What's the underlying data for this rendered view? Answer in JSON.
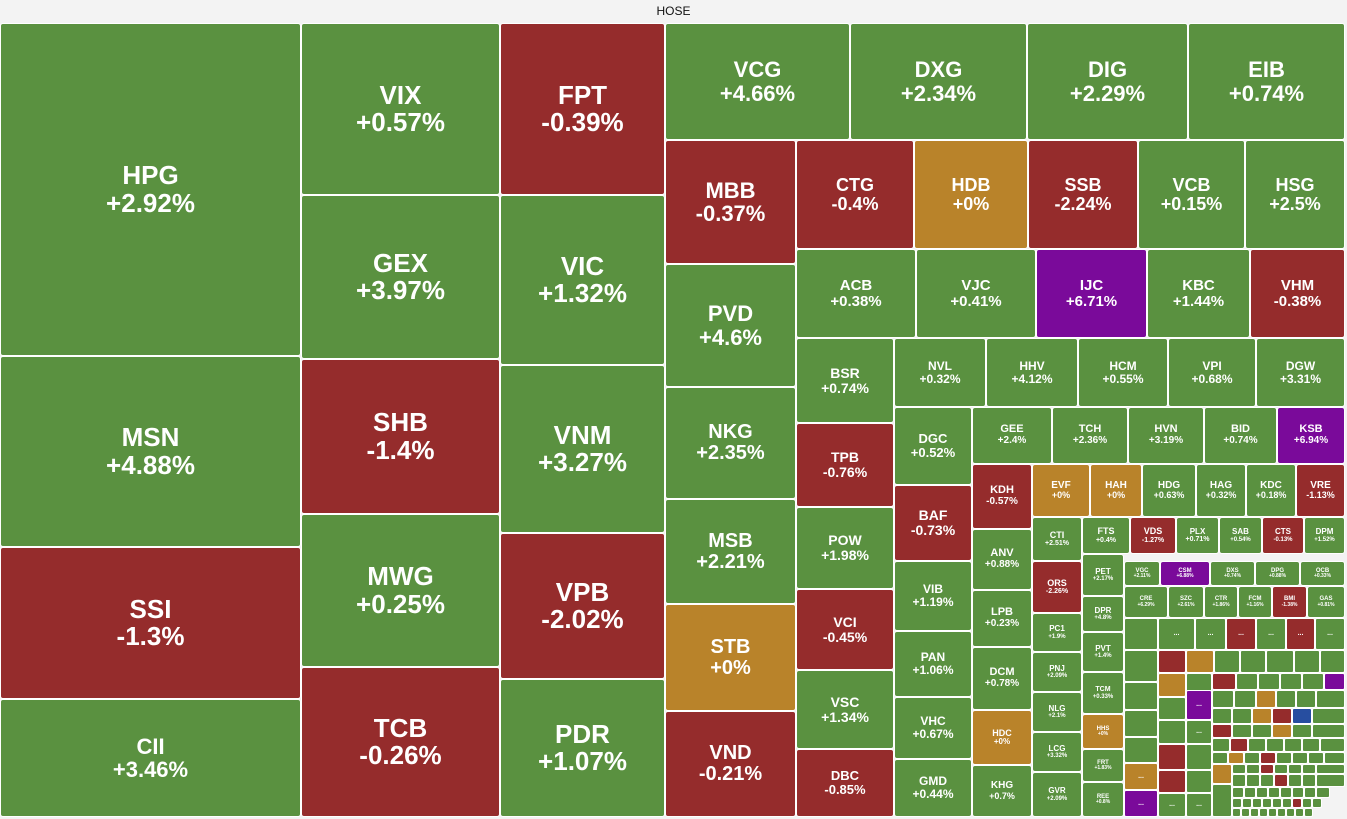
{
  "title": "HOSE",
  "colors": {
    "up": "#5a9140",
    "down": "#952c2c",
    "flat": "#b9832a",
    "ceiling": "#7a0a9a",
    "floor": "#274ea0"
  },
  "chart_data": {
    "type": "treemap",
    "title": "HOSE",
    "cells": [
      {
        "ticker": "HPG",
        "change": "+2.92%",
        "value": 2.92
      },
      {
        "ticker": "MSN",
        "change": "+4.88%",
        "value": 4.88
      },
      {
        "ticker": "SSI",
        "change": "-1.3%",
        "value": -1.3
      },
      {
        "ticker": "CII",
        "change": "+3.46%",
        "value": 3.46
      },
      {
        "ticker": "VIX",
        "change": "+0.57%",
        "value": 0.57
      },
      {
        "ticker": "GEX",
        "change": "+3.97%",
        "value": 3.97
      },
      {
        "ticker": "SHB",
        "change": "-1.4%",
        "value": -1.4
      },
      {
        "ticker": "MWG",
        "change": "+0.25%",
        "value": 0.25
      },
      {
        "ticker": "TCB",
        "change": "-0.26%",
        "value": -0.26
      },
      {
        "ticker": "FPT",
        "change": "-0.39%",
        "value": -0.39
      },
      {
        "ticker": "VIC",
        "change": "+1.32%",
        "value": 1.32
      },
      {
        "ticker": "VNM",
        "change": "+3.27%",
        "value": 3.27
      },
      {
        "ticker": "VPB",
        "change": "-2.02%",
        "value": -2.02
      },
      {
        "ticker": "PDR",
        "change": "+1.07%",
        "value": 1.07
      },
      {
        "ticker": "VCG",
        "change": "+4.66%",
        "value": 4.66
      },
      {
        "ticker": "DXG",
        "change": "+2.34%",
        "value": 2.34
      },
      {
        "ticker": "DIG",
        "change": "+2.29%",
        "value": 2.29
      },
      {
        "ticker": "EIB",
        "change": "+0.74%",
        "value": 0.74
      },
      {
        "ticker": "MBB",
        "change": "-0.37%",
        "value": -0.37
      },
      {
        "ticker": "PVD",
        "change": "+4.6%",
        "value": 4.6
      },
      {
        "ticker": "NKG",
        "change": "+2.35%",
        "value": 2.35
      },
      {
        "ticker": "MSB",
        "change": "+2.21%",
        "value": 2.21
      },
      {
        "ticker": "STB",
        "change": "+0%",
        "value": 0
      },
      {
        "ticker": "VND",
        "change": "-0.21%",
        "value": -0.21
      },
      {
        "ticker": "CTG",
        "change": "-0.4%",
        "value": -0.4
      },
      {
        "ticker": "HDB",
        "change": "+0%",
        "value": 0
      },
      {
        "ticker": "SSB",
        "change": "-2.24%",
        "value": -2.24
      },
      {
        "ticker": "VCB",
        "change": "+0.15%",
        "value": 0.15
      },
      {
        "ticker": "HSG",
        "change": "+2.5%",
        "value": 2.5
      },
      {
        "ticker": "ACB",
        "change": "+0.38%",
        "value": 0.38
      },
      {
        "ticker": "VJC",
        "change": "+0.41%",
        "value": 0.41
      },
      {
        "ticker": "IJC",
        "change": "+6.71%",
        "value": 6.71
      },
      {
        "ticker": "KBC",
        "change": "+1.44%",
        "value": 1.44
      },
      {
        "ticker": "VHM",
        "change": "-0.38%",
        "value": -0.38
      },
      {
        "ticker": "BSR",
        "change": "+0.74%",
        "value": 0.74
      },
      {
        "ticker": "TPB",
        "change": "-0.76%",
        "value": -0.76
      },
      {
        "ticker": "POW",
        "change": "+1.98%",
        "value": 1.98
      },
      {
        "ticker": "VCI",
        "change": "-0.45%",
        "value": -0.45
      },
      {
        "ticker": "VSC",
        "change": "+1.34%",
        "value": 1.34
      },
      {
        "ticker": "DBC",
        "change": "-0.85%",
        "value": -0.85
      },
      {
        "ticker": "NVL",
        "change": "+0.32%",
        "value": 0.32
      },
      {
        "ticker": "HHV",
        "change": "+4.12%",
        "value": 4.12
      },
      {
        "ticker": "HCM",
        "change": "+0.55%",
        "value": 0.55
      },
      {
        "ticker": "VPI",
        "change": "+0.68%",
        "value": 0.68
      },
      {
        "ticker": "DGW",
        "change": "+3.31%",
        "value": 3.31
      },
      {
        "ticker": "DGC",
        "change": "+0.52%",
        "value": 0.52
      },
      {
        "ticker": "BAF",
        "change": "-0.73%",
        "value": -0.73
      },
      {
        "ticker": "VIB",
        "change": "+1.19%",
        "value": 1.19
      },
      {
        "ticker": "PAN",
        "change": "+1.06%",
        "value": 1.06
      },
      {
        "ticker": "VHC",
        "change": "+0.67%",
        "value": 0.67
      },
      {
        "ticker": "GMD",
        "change": "+0.44%",
        "value": 0.44
      },
      {
        "ticker": "GEE",
        "change": "+2.4%",
        "value": 2.4
      },
      {
        "ticker": "TCH",
        "change": "+2.36%",
        "value": 2.36
      },
      {
        "ticker": "HVN",
        "change": "+3.19%",
        "value": 3.19
      },
      {
        "ticker": "BID",
        "change": "+0.74%",
        "value": 0.74
      },
      {
        "ticker": "KSB",
        "change": "+6.94%",
        "value": 6.94
      },
      {
        "ticker": "KDH",
        "change": "-0.57%",
        "value": -0.57
      },
      {
        "ticker": "EVF",
        "change": "+0%",
        "value": 0
      },
      {
        "ticker": "HAH",
        "change": "+0%",
        "value": 0
      },
      {
        "ticker": "HDG",
        "change": "+0.63%",
        "value": 0.63
      },
      {
        "ticker": "HAG",
        "change": "+0.32%",
        "value": 0.32
      },
      {
        "ticker": "KDC",
        "change": "+0.18%",
        "value": 0.18
      },
      {
        "ticker": "VRE",
        "change": "-1.13%",
        "value": -1.13
      },
      {
        "ticker": "ANV",
        "change": "+0.88%",
        "value": 0.88
      },
      {
        "ticker": "LPB",
        "change": "+0.23%",
        "value": 0.23
      },
      {
        "ticker": "DCM",
        "change": "+0.78%",
        "value": 0.78
      },
      {
        "ticker": "HDC",
        "change": "+0%",
        "value": 0
      },
      {
        "ticker": "KHG",
        "change": "+0.7%",
        "value": 0.7
      },
      {
        "ticker": "CTI",
        "change": "+2.51%",
        "value": 2.51
      },
      {
        "ticker": "FTS",
        "change": "+0.4%",
        "value": 0.4
      },
      {
        "ticker": "VDS",
        "change": "-1.27%",
        "value": -1.27
      },
      {
        "ticker": "PLX",
        "change": "+0.71%",
        "value": 0.71
      },
      {
        "ticker": "SAB",
        "change": "+0.54%",
        "value": 0.54
      },
      {
        "ticker": "CTS",
        "change": "-0.13%",
        "value": -0.13
      },
      {
        "ticker": "DPM",
        "change": "+1.52%",
        "value": 1.52
      },
      {
        "ticker": "ORS",
        "change": "-2.26%",
        "value": -2.26
      },
      {
        "ticker": "PET",
        "change": "+2.17%",
        "value": 2.17
      },
      {
        "ticker": "VGC",
        "change": "+2.11%",
        "value": 2.11
      },
      {
        "ticker": "CSM",
        "change": "+6.88%",
        "value": 6.88
      },
      {
        "ticker": "DXS",
        "change": "+0.74%",
        "value": 0.74
      },
      {
        "ticker": "DPG",
        "change": "+0.88%",
        "value": 0.88
      },
      {
        "ticker": "OCB",
        "change": "+0.33%",
        "value": 0.33
      },
      {
        "ticker": "DPR",
        "change": "+4.8%",
        "value": 4.8
      },
      {
        "ticker": "CRE",
        "change": "+6.29%",
        "value": 6.29
      },
      {
        "ticker": "SZC",
        "change": "+2.61%",
        "value": 2.61
      },
      {
        "ticker": "CTR",
        "change": "+1.86%",
        "value": 1.86
      },
      {
        "ticker": "FCM",
        "change": "+1.16%",
        "value": 1.16
      },
      {
        "ticker": "BMI",
        "change": "-1.38%",
        "value": -1.38
      },
      {
        "ticker": "GAS",
        "change": "+0.81%",
        "value": 0.81
      },
      {
        "ticker": "PC1",
        "change": "+1.9%",
        "value": 1.9
      },
      {
        "ticker": "PVT",
        "change": "+1.4%",
        "value": 1.4
      },
      {
        "ticker": "PNJ",
        "change": "+2.09%",
        "value": 2.09
      },
      {
        "ticker": "TCM",
        "change": "+0.33%",
        "value": 0.33
      },
      {
        "ticker": "NLG",
        "change": "+2.1%",
        "value": 2.1
      },
      {
        "ticker": "HHS",
        "change": "+0%",
        "value": 0
      },
      {
        "ticker": "LCG",
        "change": "+3.32%",
        "value": 3.32
      },
      {
        "ticker": "FRT",
        "change": "+1.83%",
        "value": 1.83
      },
      {
        "ticker": "GVR",
        "change": "+2.09%",
        "value": 2.09
      },
      {
        "ticker": "REE",
        "change": "+0.8%",
        "value": 0.8
      }
    ],
    "hidden_label": "..."
  }
}
